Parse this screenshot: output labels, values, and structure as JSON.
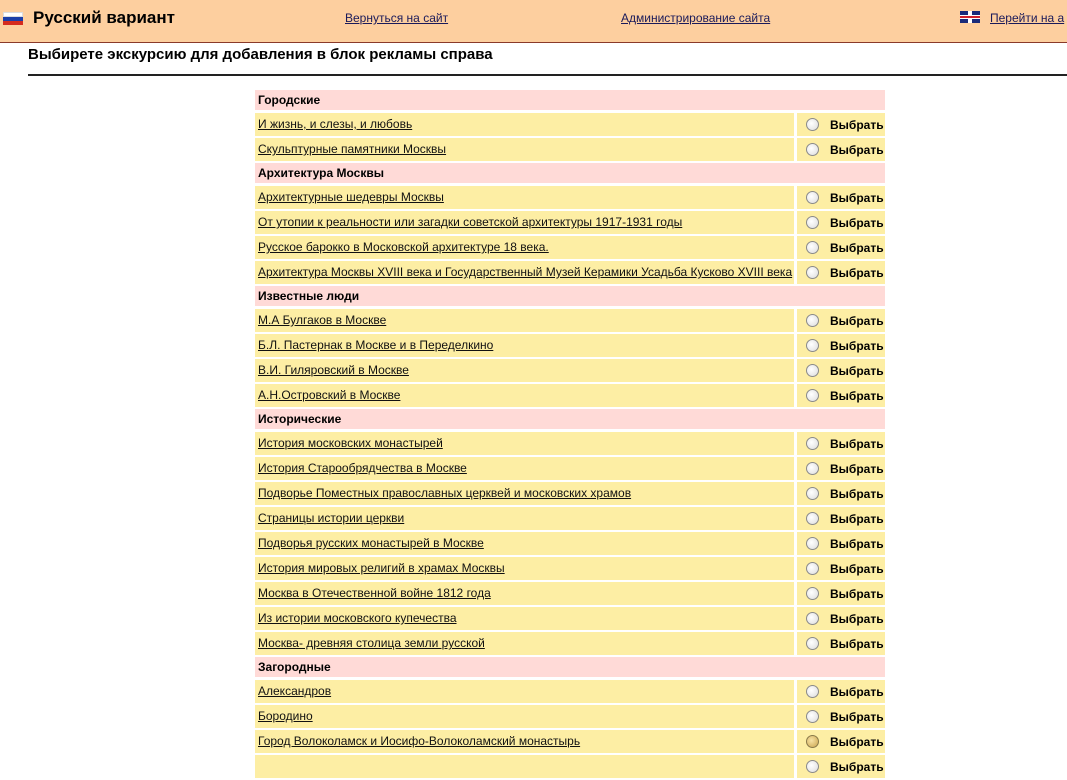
{
  "header": {
    "title": "Русский вариант",
    "back_link": "Вернуться на сайт",
    "admin_link": "Администрирование сайта",
    "lang_link": "Перейти на а"
  },
  "page_heading": "Выбирете экскурсию для добавления в блок рекламы справа",
  "select_label": "Выбрать",
  "groups": [
    {
      "title": "Городские",
      "items": [
        "И жизнь, и слезы, и любовь",
        "Скульптурные памятники Москвы"
      ]
    },
    {
      "title": "Архитектура Москвы",
      "items": [
        "Архитектурные шедевры Москвы",
        "От утопии к реальности или загадки советской архитектуры 1917-1931 годы",
        "Русское барокко в Московской архитектуре 18 века.",
        "Архитектура Москвы XVIII века и Государственный Музей Керамики Усадьба Кусково XVIII века"
      ]
    },
    {
      "title": "Известные люди",
      "items": [
        "М.А Булгаков в Москве",
        "Б.Л. Пастернак в Москве и в Переделкино",
        "В.И. Гиляровский в Москве",
        "А.Н.Островский в Москве"
      ]
    },
    {
      "title": "Исторические",
      "items": [
        "История московских монастырей",
        "История Старообрядчества в Москве",
        "Подворье Поместных православных церквей и московских храмов",
        "Страницы истории церкви",
        "Подворья русских монастырей в Москве",
        "История мировых религий в храмах Москвы",
        "Москва в Отечественной войне 1812 года",
        "Из истории московского купечества",
        "Москва- древняя столица земли русской"
      ]
    },
    {
      "title": "Загородные",
      "items": [
        "Александров",
        "Бородино",
        "Город Волоколамск и Иосифо-Волоколамский монастырь",
        ""
      ]
    }
  ],
  "colors": {
    "topbar": "#fdcf9f",
    "group_bg": "#ffdad7",
    "row_bg": "#fdeea4"
  }
}
